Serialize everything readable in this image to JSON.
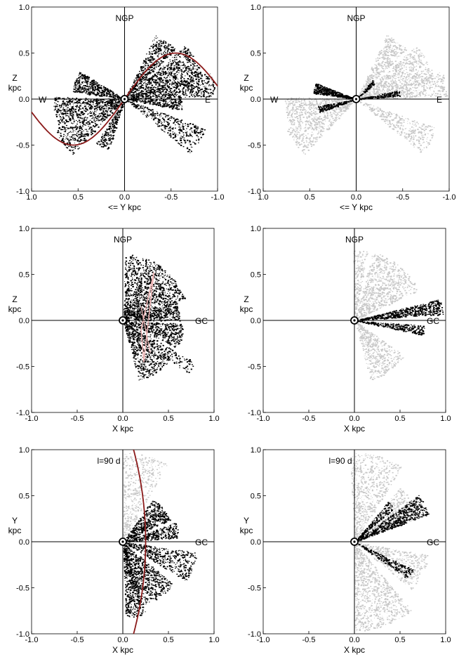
{
  "chart_data": [
    {
      "type": "scatter",
      "panel": "top-left",
      "xlabel": "<= Y kpc",
      "ylabel": "Z\nkpc",
      "xlim": [
        1.0,
        -1.0
      ],
      "ylim": [
        -1.0,
        1.0
      ],
      "xticks": [
        "1.0",
        "0.5",
        "0.0",
        "-0.5",
        "-1.0"
      ],
      "yticks": [
        "1.0",
        "0.5",
        "0.0",
        "-0.5",
        "-1.0"
      ],
      "annotations": [
        "NGP",
        "W",
        "E"
      ],
      "colors": {
        "points": "#000000",
        "curve": "#8b1a1a"
      },
      "fans": [
        {
          "tone": "dark",
          "angle_deg": 28,
          "spread_deg": 14,
          "length": 0.85,
          "density": 700
        },
        {
          "tone": "dark",
          "angle_deg": 55,
          "spread_deg": 10,
          "length": 0.75,
          "density": 450
        },
        {
          "tone": "dark",
          "angle_deg": 10,
          "spread_deg": 8,
          "length": 0.95,
          "density": 500
        },
        {
          "tone": "dark",
          "angle_deg": 160,
          "spread_deg": 12,
          "length": 0.55,
          "density": 450
        },
        {
          "tone": "dark",
          "angle_deg": 190,
          "spread_deg": 12,
          "length": 0.75,
          "density": 500
        },
        {
          "tone": "dark",
          "angle_deg": 215,
          "spread_deg": 12,
          "length": 0.8,
          "density": 450
        },
        {
          "tone": "dark",
          "angle_deg": 245,
          "spread_deg": 8,
          "length": 0.55,
          "density": 250
        },
        {
          "tone": "dark",
          "angle_deg": 330,
          "spread_deg": 10,
          "length": 0.9,
          "density": 400
        },
        {
          "tone": "dark",
          "angle_deg": 355,
          "spread_deg": 6,
          "length": 0.6,
          "density": 250
        }
      ],
      "curve": {
        "kind": "sine",
        "amplitude": 0.5,
        "half_period": 1.1,
        "x_range": [
          1.0,
          -1.0
        ]
      }
    },
    {
      "type": "scatter",
      "panel": "top-right",
      "xlabel": "<= Y kpc",
      "ylabel": "Z\nkpc",
      "xlim": [
        1.0,
        -1.0
      ],
      "ylim": [
        -1.0,
        1.0
      ],
      "xticks": [
        "1.0",
        "0.5",
        "0.0",
        "-0.5",
        "-1.0"
      ],
      "yticks": [
        "1.0",
        "0.5",
        "0.0",
        "-0.5",
        "-1.0"
      ],
      "annotations": [
        "NGP",
        "W",
        "E"
      ],
      "colors": {
        "points": "#000000",
        "background": "#c8c8c8"
      },
      "fans": [
        {
          "tone": "light",
          "angle_deg": 28,
          "spread_deg": 14,
          "length": 0.85,
          "density": 600
        },
        {
          "tone": "light",
          "angle_deg": 55,
          "spread_deg": 10,
          "length": 0.75,
          "density": 400
        },
        {
          "tone": "light",
          "angle_deg": 10,
          "spread_deg": 8,
          "length": 0.95,
          "density": 400
        },
        {
          "tone": "light",
          "angle_deg": 190,
          "spread_deg": 12,
          "length": 0.75,
          "density": 450
        },
        {
          "tone": "light",
          "angle_deg": 215,
          "spread_deg": 12,
          "length": 0.8,
          "density": 450
        },
        {
          "tone": "light",
          "angle_deg": 330,
          "spread_deg": 10,
          "length": 0.9,
          "density": 350
        },
        {
          "tone": "dark",
          "angle_deg": 165,
          "spread_deg": 7,
          "length": 0.45,
          "density": 450
        },
        {
          "tone": "dark",
          "angle_deg": 195,
          "spread_deg": 5,
          "length": 0.4,
          "density": 200
        },
        {
          "tone": "dark",
          "angle_deg": 8,
          "spread_deg": 4,
          "length": 0.45,
          "density": 180
        },
        {
          "tone": "dark",
          "angle_deg": 45,
          "spread_deg": 5,
          "length": 0.25,
          "density": 80
        }
      ]
    },
    {
      "type": "scatter",
      "panel": "middle-left",
      "xlabel": "X kpc",
      "ylabel": "Z\nkpc",
      "xlim": [
        -1.0,
        1.0
      ],
      "ylim": [
        -1.0,
        1.0
      ],
      "xticks": [
        "-1.0",
        "-0.5",
        "0.0",
        "0.5",
        "1.0"
      ],
      "yticks": [
        "1.0",
        "0.5",
        "0.0",
        "-0.5",
        "-1.0"
      ],
      "annotations": [
        "NGP",
        "GC"
      ],
      "colors": {
        "points": "#000000",
        "outline": "#f2b8b8"
      },
      "fans": [
        {
          "tone": "dark",
          "angle_deg": 45,
          "spread_deg": 25,
          "length": 0.7,
          "density": 900
        },
        {
          "tone": "dark",
          "angle_deg": 80,
          "spread_deg": 8,
          "length": 0.7,
          "density": 250
        },
        {
          "tone": "dark",
          "angle_deg": 10,
          "spread_deg": 10,
          "length": 0.6,
          "density": 400
        },
        {
          "tone": "dark",
          "angle_deg": -15,
          "spread_deg": 12,
          "length": 0.65,
          "density": 450
        },
        {
          "tone": "dark",
          "angle_deg": -55,
          "spread_deg": 20,
          "length": 0.65,
          "density": 600
        },
        {
          "tone": "dark",
          "angle_deg": -35,
          "spread_deg": 5,
          "length": 0.9,
          "density": 150
        }
      ]
    },
    {
      "type": "scatter",
      "panel": "middle-right",
      "xlabel": "X kpc",
      "ylabel": "Z\nkpc",
      "xlim": [
        -1.0,
        1.0
      ],
      "ylim": [
        -1.0,
        1.0
      ],
      "xticks": [
        "-1.0",
        "-0.5",
        "0.0",
        "0.5",
        "1.0"
      ],
      "yticks": [
        "1.0",
        "0.5",
        "0.0",
        "-0.5",
        "-1.0"
      ],
      "annotations": [
        "NGP",
        "GC"
      ],
      "colors": {
        "points": "#000000",
        "background": "#c8c8c8"
      },
      "fans": [
        {
          "tone": "light",
          "angle_deg": 50,
          "spread_deg": 25,
          "length": 0.75,
          "density": 800
        },
        {
          "tone": "light",
          "angle_deg": 85,
          "spread_deg": 6,
          "length": 0.75,
          "density": 200
        },
        {
          "tone": "light",
          "angle_deg": -55,
          "spread_deg": 20,
          "length": 0.65,
          "density": 500
        },
        {
          "tone": "dark",
          "angle_deg": 9,
          "spread_deg": 5,
          "length": 0.95,
          "density": 600
        },
        {
          "tone": "dark",
          "angle_deg": -8,
          "spread_deg": 4,
          "length": 0.75,
          "density": 300
        }
      ]
    },
    {
      "type": "scatter",
      "panel": "bottom-left",
      "xlabel": "X kpc",
      "ylabel": "Y\nkpc",
      "xlim": [
        -1.0,
        1.0
      ],
      "ylim": [
        -1.0,
        1.0
      ],
      "xticks": [
        "-1.0",
        "-0.5",
        "0.0",
        "0.5",
        "1.0"
      ],
      "yticks": [
        "1.0",
        "0.5",
        "0.0",
        "-0.5",
        "-1.0"
      ],
      "annotations": [
        "l=90 d",
        "GC"
      ],
      "colors": {
        "points": "#000000",
        "background": "#c8c8c8",
        "curve": "#8b1a1a"
      },
      "fans": [
        {
          "tone": "light",
          "angle_deg": 75,
          "spread_deg": 15,
          "length": 0.95,
          "density": 450
        },
        {
          "tone": "dark",
          "angle_deg": 40,
          "spread_deg": 15,
          "length": 0.55,
          "density": 500
        },
        {
          "tone": "dark",
          "angle_deg": 12,
          "spread_deg": 8,
          "length": 0.6,
          "density": 300
        },
        {
          "tone": "dark",
          "angle_deg": -20,
          "spread_deg": 12,
          "length": 0.8,
          "density": 450
        },
        {
          "tone": "dark",
          "angle_deg": -60,
          "spread_deg": 20,
          "length": 0.7,
          "density": 700
        },
        {
          "tone": "dark",
          "angle_deg": -80,
          "spread_deg": 8,
          "length": 0.8,
          "density": 400
        }
      ],
      "curve": {
        "kind": "arc",
        "center_x": -3.6,
        "radius": 3.85
      }
    },
    {
      "type": "scatter",
      "panel": "bottom-right",
      "xlabel": "X kpc",
      "ylabel": "Y\nkpc",
      "xlim": [
        -1.0,
        1.0
      ],
      "ylim": [
        -1.0,
        1.0
      ],
      "xticks": [
        "-1.0",
        "-0.5",
        "0.0",
        "0.5",
        "1.0"
      ],
      "yticks": [
        "1.0",
        "0.5",
        "0.0",
        "-0.5",
        "-1.0"
      ],
      "annotations": [
        "l=90 d",
        "GC"
      ],
      "colors": {
        "points": "#000000",
        "background": "#c8c8c8"
      },
      "fans": [
        {
          "tone": "light",
          "angle_deg": 75,
          "spread_deg": 18,
          "length": 0.95,
          "density": 650
        },
        {
          "tone": "light",
          "angle_deg": 35,
          "spread_deg": 15,
          "length": 0.75,
          "density": 450
        },
        {
          "tone": "light",
          "angle_deg": -25,
          "spread_deg": 15,
          "length": 0.8,
          "density": 450
        },
        {
          "tone": "light",
          "angle_deg": -70,
          "spread_deg": 20,
          "length": 0.95,
          "density": 900
        },
        {
          "tone": "dark",
          "angle_deg": 28,
          "spread_deg": 8,
          "length": 0.85,
          "density": 650
        },
        {
          "tone": "dark",
          "angle_deg": 45,
          "spread_deg": 5,
          "length": 0.55,
          "density": 200
        },
        {
          "tone": "dark",
          "angle_deg": -30,
          "spread_deg": 5,
          "length": 0.7,
          "density": 250
        }
      ]
    }
  ]
}
